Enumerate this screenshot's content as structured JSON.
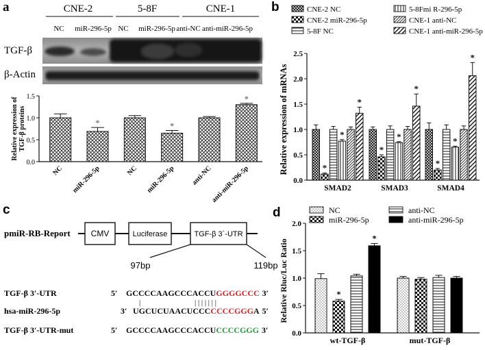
{
  "panels": {
    "a": "a",
    "b": "b",
    "c": "c",
    "d": "d"
  },
  "blot": {
    "cell_lines": [
      "CNE-2",
      "5-8F",
      "CNE-1"
    ],
    "lanes": [
      "NC",
      "miR-296-5p",
      "NC",
      "miR-296-5p",
      "anti-NC",
      "anti-miR-296-5p"
    ],
    "rows": [
      "TGF-β",
      "β-Actin"
    ]
  },
  "construct": {
    "title": "pmiR-RB-Report",
    "boxes": [
      "CMV",
      "Luciferase",
      "TGF-β 3`-UTR"
    ],
    "positions": [
      "97bp",
      "119bp"
    ],
    "sequences": [
      {
        "label": "TGF-β 3′-UTR",
        "five": "5′",
        "three": "3′",
        "segments": [
          {
            "text": "GCCCCAAGCCCACCU",
            "color": "#111111"
          },
          {
            "text": "GGGGCCC",
            "color": "#e02020"
          }
        ]
      },
      {
        "label": "hsa-miR-296-5p",
        "five": "3′",
        "three": "5′",
        "segments": [
          {
            "text": "UGCUCUAACUCCC",
            "color": "#111111"
          },
          {
            "text": "CCCCGGG",
            "color": "#e02020"
          },
          {
            "text": "A",
            "color": "#111111"
          }
        ]
      },
      {
        "label": "TGF-β 3′-UTR-mut",
        "five": "5′",
        "three": "3′",
        "segments": [
          {
            "text": "GCCCCAAGCCCACCU",
            "color": "#111111"
          },
          {
            "text": "CCCCGGG",
            "color": "#22a032"
          }
        ]
      }
    ],
    "pairing_marks": "| | | | | | |"
  },
  "chart_data": [
    {
      "panel": "a",
      "type": "bar",
      "categories": [
        "NC",
        "miR-296-5p",
        "NC",
        "miR-296-5p",
        "anti-NC",
        "anti-miR-296-5p"
      ],
      "values": [
        1.0,
        0.69,
        1.0,
        0.65,
        1.0,
        1.3
      ],
      "errors": [
        0.09,
        0.09,
        0.05,
        0.06,
        0.03,
        0.03
      ],
      "significance": [
        "",
        "*",
        "",
        "*",
        "",
        "*"
      ],
      "ylabel": "Relative expression of TGF-β proteins",
      "ylabel_lines": [
        "Relative expression of",
        "TGF-β proteins"
      ],
      "ylim": [
        0,
        1.5
      ],
      "yticks": [
        0.0,
        0.5,
        1.0,
        1.5
      ],
      "ytick_labels": [
        "0.0",
        "0.5",
        "1.0",
        "1.5"
      ],
      "grid": false,
      "bar_fill": "crosshatch"
    },
    {
      "panel": "b",
      "type": "bar",
      "categories": [
        "SMAD2",
        "SMAD3",
        "SMAD4"
      ],
      "series": [
        {
          "name": "CNE-2 NC",
          "values": [
            1.0,
            1.0,
            1.0
          ],
          "errors": [
            0.09,
            0.05,
            0.13
          ],
          "significance": [
            "",
            "",
            ""
          ],
          "pattern": "dense-crosshatch"
        },
        {
          "name": "CNE-2 miR-296-5p",
          "values": [
            0.12,
            0.46,
            0.2
          ],
          "errors": [
            0.02,
            0.04,
            0.03
          ],
          "significance": [
            "*",
            "*",
            "*"
          ],
          "pattern": "checker"
        },
        {
          "name": "5-8F NC",
          "values": [
            1.0,
            1.0,
            1.0
          ],
          "errors": [
            0.06,
            0.07,
            0.09
          ],
          "significance": [
            "",
            "",
            ""
          ],
          "pattern": "horizontal"
        },
        {
          "name": "5-8Fmi R-296-5p",
          "values": [
            0.77,
            0.74,
            0.65
          ],
          "errors": [
            0.03,
            0.02,
            0.02
          ],
          "significance": [
            "*",
            "*",
            "*"
          ],
          "pattern": "vertical"
        },
        {
          "name": "CNE-1 anti-NC",
          "values": [
            1.0,
            1.0,
            1.0
          ],
          "errors": [
            0.05,
            0.06,
            0.07
          ],
          "significance": [
            "",
            "",
            ""
          ],
          "pattern": "diagonal"
        },
        {
          "name": "CNE-1 anti-miR-296-5p",
          "values": [
            1.32,
            1.46,
            2.06
          ],
          "errors": [
            0.12,
            0.24,
            0.26
          ],
          "significance": [
            "*",
            "*",
            "*"
          ],
          "pattern": "diagonal-wide"
        }
      ],
      "legend_labels": [
        "CNE-2 NC",
        "CNE-2 miR-296-5p",
        "5-8F NC",
        "5-8Fmi R-296-5p",
        "CNE-1 anti-NC",
        "CNE-1 anti-miR-296-5p"
      ],
      "ylabel": "Relative expression of mRNAs",
      "ylim": [
        0,
        2.5
      ],
      "yticks": [
        0.0,
        0.5,
        1.0,
        1.5,
        2.0,
        2.5
      ],
      "ytick_labels": [
        "0.0",
        "0.5",
        "1.0",
        "1.5",
        "2.0",
        "2.5"
      ],
      "legend_position": "top",
      "grid": false
    },
    {
      "panel": "d",
      "type": "bar",
      "categories": [
        "wt-TGF-β",
        "mut-TGF-β"
      ],
      "series": [
        {
          "name": "NC",
          "values": [
            0.99,
            1.0
          ],
          "errors": [
            0.09,
            0.03
          ],
          "significance": [
            "",
            ""
          ],
          "pattern": "dots"
        },
        {
          "name": "miR-296-5p",
          "values": [
            0.58,
            0.98
          ],
          "errors": [
            0.03,
            0.03
          ],
          "significance": [
            "*",
            ""
          ],
          "pattern": "checker"
        },
        {
          "name": "anti-NC",
          "values": [
            1.04,
            1.01
          ],
          "errors": [
            0.03,
            0.04
          ],
          "significance": [
            "",
            ""
          ],
          "pattern": "horizontal"
        },
        {
          "name": "anti-miR-296-5p",
          "values": [
            1.59,
            1.0
          ],
          "errors": [
            0.04,
            0.03
          ],
          "significance": [
            "*",
            ""
          ],
          "pattern": "solid"
        }
      ],
      "ylabel": "Relative Rluc/Luc Ratio",
      "ylim": [
        0,
        2.0
      ],
      "yticks": [
        0.0,
        0.5,
        1.0,
        1.5,
        2.0
      ],
      "ytick_labels": [
        "0.0",
        "0.5",
        "1.0",
        "1.5",
        "2.0"
      ],
      "legend_position": "top",
      "grid": false
    }
  ]
}
